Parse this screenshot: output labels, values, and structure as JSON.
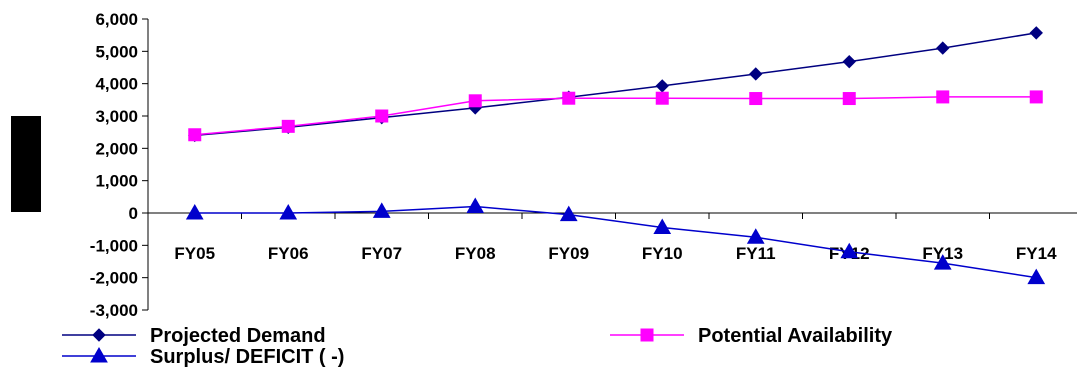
{
  "chart_data": {
    "type": "line",
    "title": "",
    "xlabel": "",
    "ylabel": "",
    "categories": [
      "FY05",
      "FY06",
      "FY07",
      "FY08",
      "FY09",
      "FY10",
      "FY11",
      "FY12",
      "FY13",
      "FY14"
    ],
    "ylim": [
      -3000,
      6000
    ],
    "yticks": [
      -3000,
      -2000,
      -1000,
      0,
      1000,
      2000,
      3000,
      4000,
      5000,
      6000
    ],
    "ytick_labels": [
      "-3,000",
      "-2,000",
      "-1,000",
      "0",
      "1,000",
      "2,000",
      "3,000",
      "4,000",
      "5,000",
      "6,000"
    ],
    "grid": false,
    "legend_position": "bottom",
    "series": [
      {
        "name": "Projected Demand",
        "color": "#000080",
        "marker": "diamond",
        "values": [
          2400,
          2650,
          2950,
          3250,
          3580,
          3930,
          4300,
          4680,
          5100,
          5570
        ]
      },
      {
        "name": "Potential Availability",
        "color": "#ff00ff",
        "marker": "square",
        "values": [
          2420,
          2680,
          3000,
          3470,
          3550,
          3550,
          3540,
          3540,
          3590,
          3590
        ]
      },
      {
        "name": "Surplus/ DEFICIT ( -)",
        "color": "#0000cc",
        "marker": "triangle",
        "values": [
          0,
          0,
          50,
          200,
          -50,
          -450,
          -750,
          -1200,
          -1550,
          -2000
        ]
      }
    ]
  }
}
